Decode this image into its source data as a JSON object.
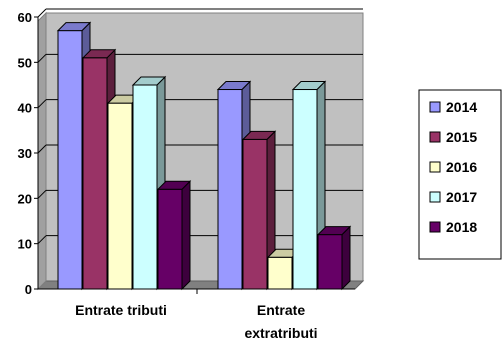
{
  "chart_data": {
    "type": "bar",
    "style": "3d-clustered-column",
    "categories": [
      [
        "Entrate tributi"
      ],
      [
        "Entrate",
        "extratributi"
      ]
    ],
    "series": [
      {
        "name": "2014",
        "values": [
          57,
          44
        ],
        "color": "#9999ff"
      },
      {
        "name": "2015",
        "values": [
          51,
          33
        ],
        "color": "#993366"
      },
      {
        "name": "2016",
        "values": [
          41,
          7
        ],
        "color": "#ffffcc"
      },
      {
        "name": "2017",
        "values": [
          45,
          44
        ],
        "color": "#ccffff"
      },
      {
        "name": "2018",
        "values": [
          22,
          12
        ],
        "color": "#660066"
      }
    ],
    "ylim": [
      0,
      60
    ],
    "yticks": [
      0,
      10,
      20,
      30,
      40,
      50,
      60
    ],
    "grid": true,
    "legend_position": "right",
    "xlabel": "",
    "ylabel": ""
  }
}
